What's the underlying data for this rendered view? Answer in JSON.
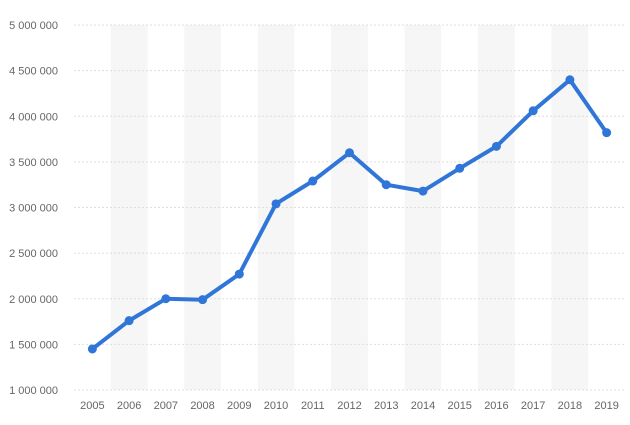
{
  "chart_data": {
    "type": "line",
    "title": "",
    "xlabel": "",
    "ylabel": "",
    "categories": [
      "2005",
      "2006",
      "2007",
      "2008",
      "2009",
      "2010",
      "2011",
      "2012",
      "2013",
      "2014",
      "2015",
      "2016",
      "2017",
      "2018",
      "2019"
    ],
    "series": [
      {
        "values": [
          1450000,
          1760000,
          2000000,
          1990000,
          2270000,
          3040000,
          3290000,
          3600000,
          3250000,
          3180000,
          3430000,
          3670000,
          4060000,
          4400000,
          3820000
        ]
      }
    ],
    "ylim": [
      1000000,
      5000000
    ],
    "yticks": [
      1000000,
      1500000,
      2000000,
      2500000,
      3000000,
      3500000,
      4000000,
      4500000,
      5000000
    ],
    "ytick_labels": [
      "1 000 000",
      "1 500 000",
      "2 000 000",
      "2 500 000",
      "3 000 000",
      "3 500 000",
      "4 000 000",
      "4 500 000",
      "5 000 000"
    ],
    "grid": true,
    "colors": {
      "line": "#2f76d8",
      "band": "#f6f6f6",
      "grid": "#dddddd",
      "text": "#666666"
    }
  }
}
